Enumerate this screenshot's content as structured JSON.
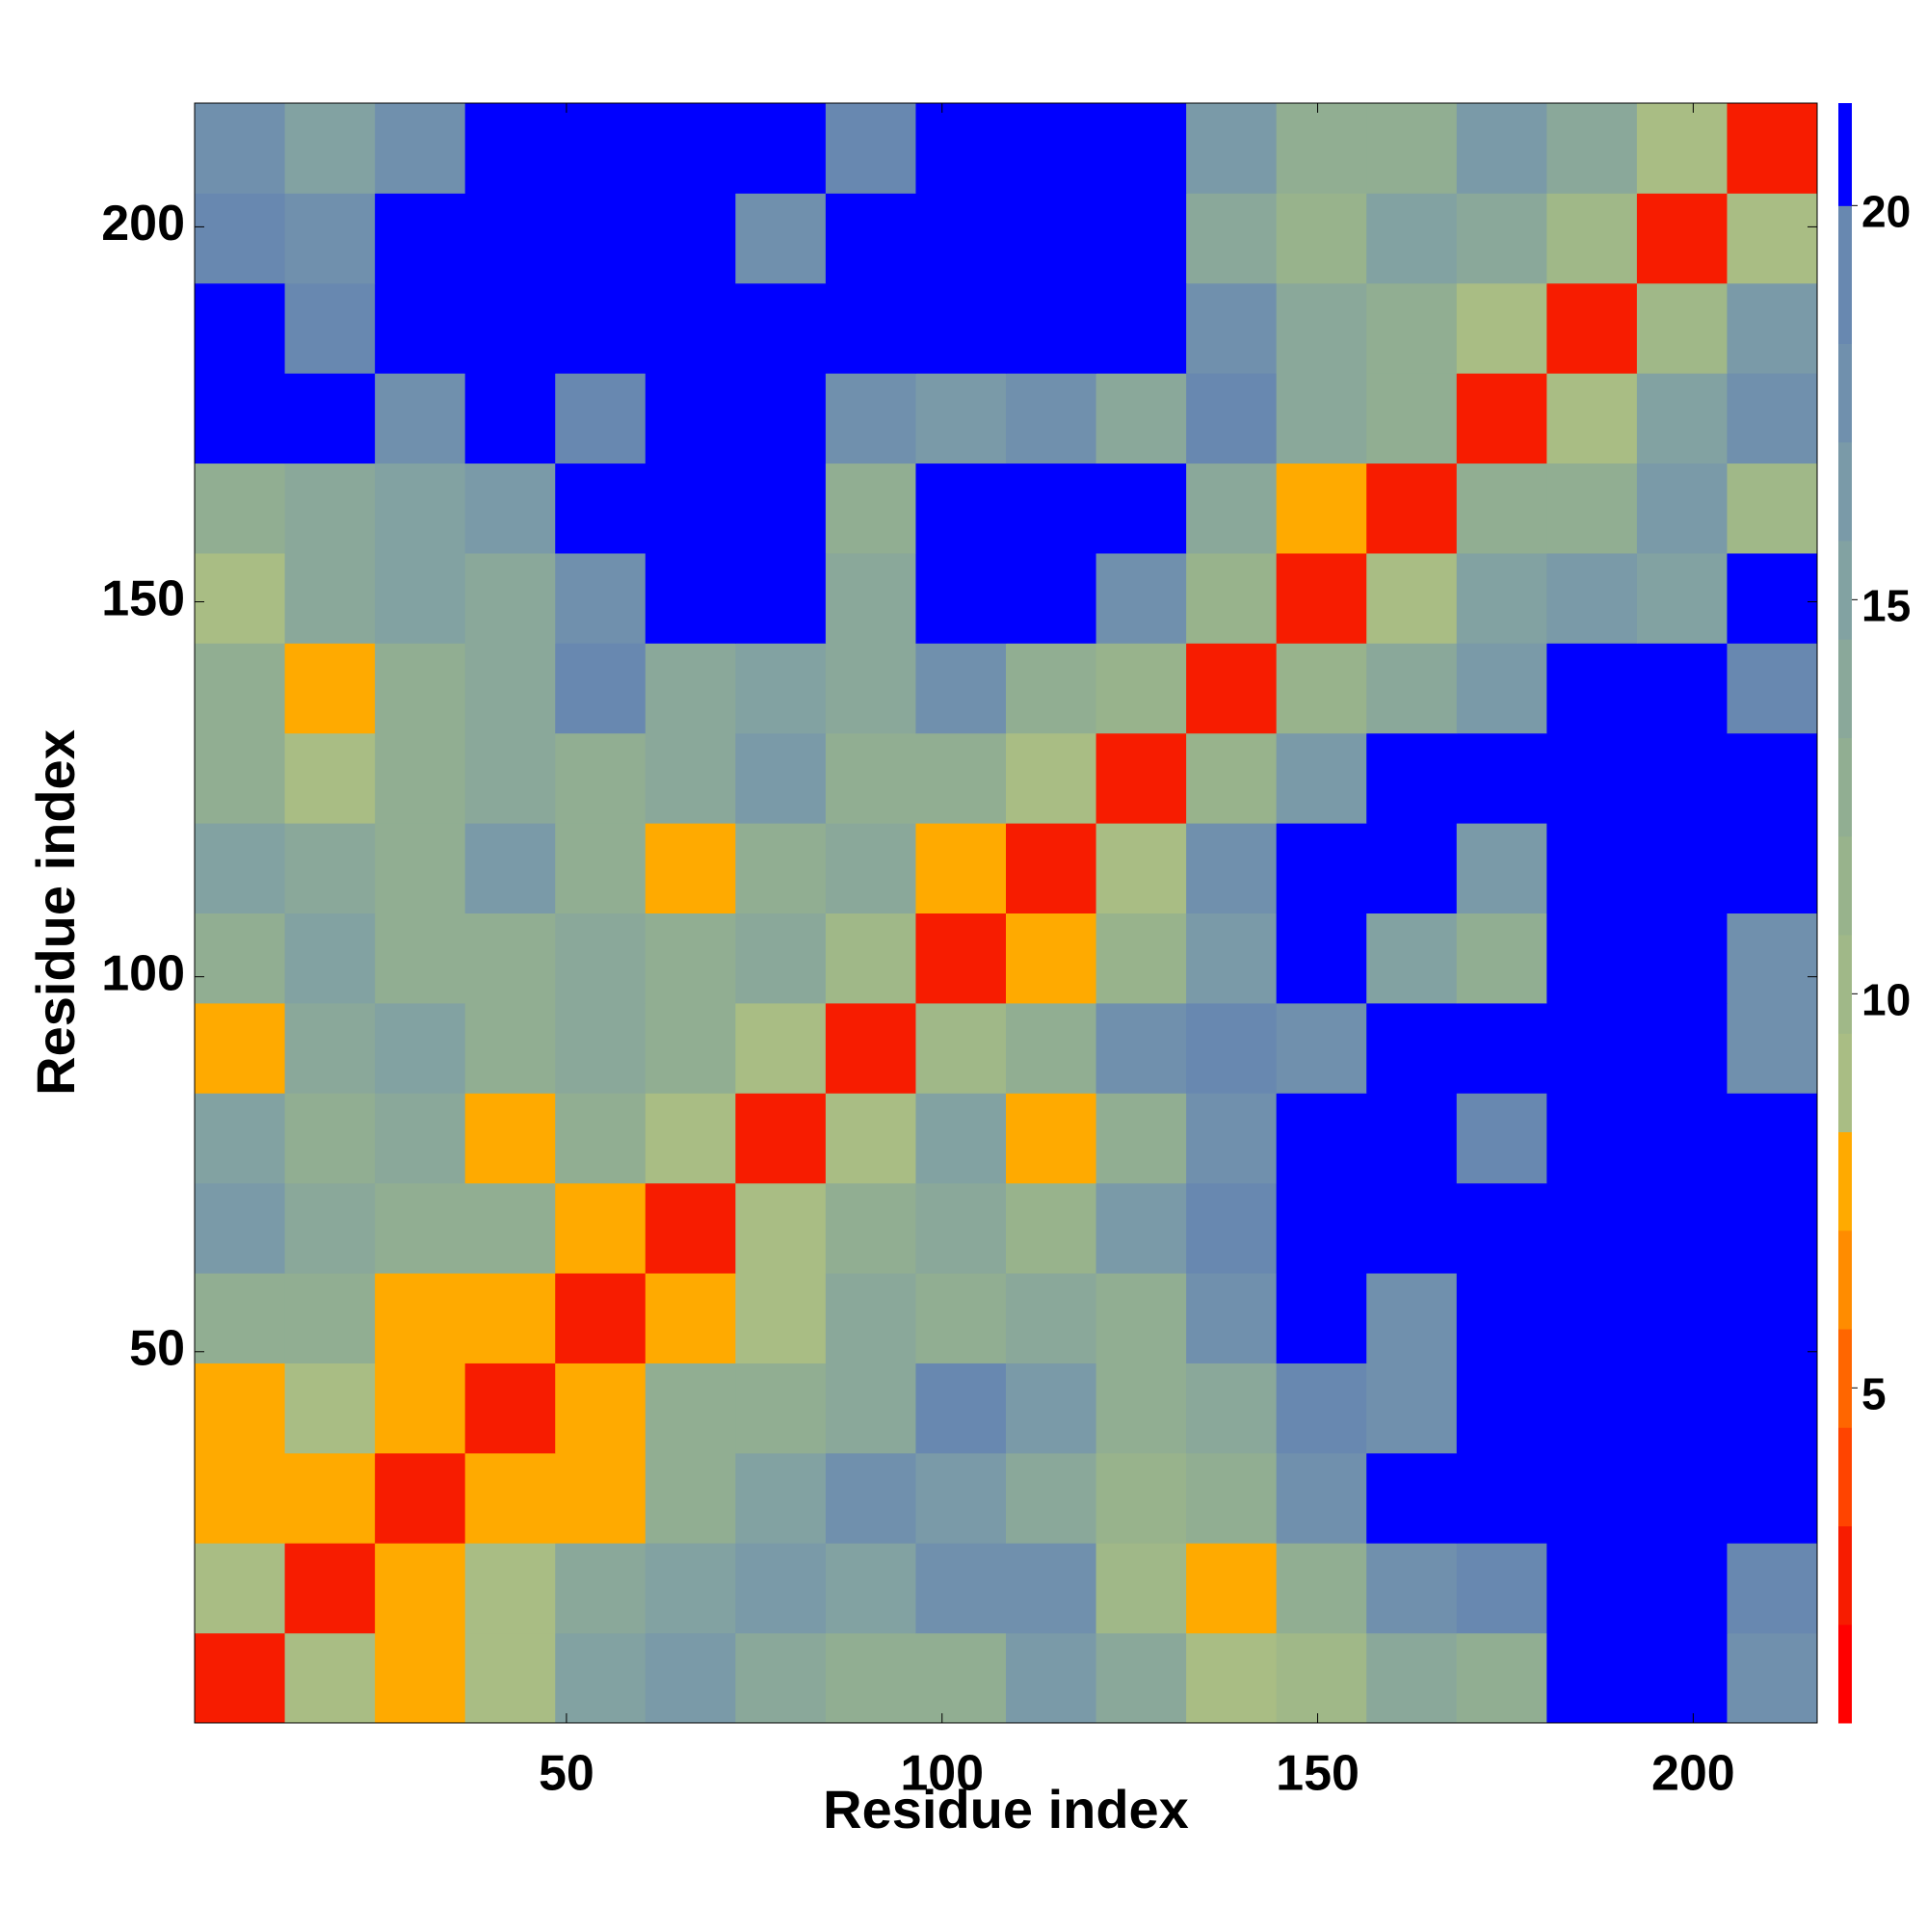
{
  "chart_data": {
    "type": "heatmap",
    "xlabel": "Residue index",
    "ylabel": "Residue index",
    "x": [
      6.5,
      18.5,
      30.5,
      42.5,
      54.5,
      66.5,
      78.5,
      90.5,
      102.5,
      114.5,
      126.5,
      138.5,
      150.5,
      162.5,
      174.5,
      186.5,
      198.5,
      210.5
    ],
    "y": [
      6.5,
      18.5,
      30.5,
      42.5,
      54.5,
      66.5,
      78.5,
      90.5,
      102.5,
      114.5,
      126.5,
      138.5,
      150.5,
      162.5,
      174.5,
      186.5,
      198.5,
      210.5
    ],
    "z": [
      [
        3,
        9,
        8,
        9,
        15,
        16,
        14,
        12,
        13,
        16,
        14,
        9,
        10,
        14,
        12,
        20,
        21,
        18
      ],
      [
        9,
        3,
        7,
        9,
        14,
        15,
        16,
        15,
        17,
        18,
        10,
        7,
        13,
        17,
        19,
        21,
        21,
        19
      ],
      [
        8,
        7,
        3,
        8,
        8,
        13,
        15,
        17,
        16,
        14,
        11,
        12,
        17,
        20,
        21,
        21,
        21,
        21
      ],
      [
        7,
        9,
        8,
        3,
        8,
        12,
        13,
        14,
        19,
        16,
        13,
        14,
        19,
        18,
        21,
        21,
        21,
        20
      ],
      [
        13,
        12,
        7,
        8,
        3,
        8,
        9,
        14,
        12,
        14,
        13,
        17,
        20,
        18,
        21,
        21,
        21,
        21
      ],
      [
        16,
        14,
        13,
        12,
        8,
        3,
        9,
        12,
        14,
        11,
        16,
        19,
        21,
        21,
        21,
        21,
        21,
        21
      ],
      [
        15,
        13,
        14,
        8,
        13,
        9,
        3,
        9,
        15,
        8,
        12,
        18,
        21,
        21,
        19,
        21,
        21,
        21
      ],
      [
        8,
        14,
        15,
        13,
        14,
        12,
        9,
        3,
        10,
        13,
        17,
        19,
        17,
        20,
        21,
        21,
        21,
        18
      ],
      [
        12,
        15,
        13,
        12,
        14,
        13,
        14,
        10,
        3,
        8,
        11,
        16,
        21,
        15,
        13,
        21,
        21,
        18
      ],
      [
        15,
        14,
        13,
        16,
        13,
        8,
        12,
        14,
        8,
        3,
        9,
        17,
        21,
        20,
        16,
        21,
        21,
        21
      ],
      [
        13,
        9,
        12,
        14,
        13,
        14,
        16,
        13,
        12,
        9,
        3,
        11,
        16,
        21,
        21,
        21,
        21,
        21
      ],
      [
        12,
        8,
        13,
        14,
        19,
        14,
        15,
        14,
        17,
        13,
        11,
        3,
        11,
        14,
        16,
        21,
        21,
        19
      ],
      [
        9,
        14,
        15,
        14,
        17,
        21,
        21,
        14,
        21,
        21,
        17,
        11,
        3,
        9,
        15,
        16,
        15,
        21
      ],
      [
        13,
        14,
        15,
        16,
        20,
        21,
        21,
        13,
        21,
        21,
        20,
        14,
        8,
        3,
        12,
        13,
        16,
        10
      ],
      [
        21,
        20,
        18,
        21,
        19,
        21,
        20,
        17,
        16,
        17,
        14,
        19,
        14,
        12,
        3,
        9,
        15,
        17
      ],
      [
        21,
        19,
        21,
        21,
        21,
        21,
        21,
        21,
        21,
        21,
        21,
        17,
        14,
        13,
        9,
        3,
        10,
        16
      ],
      [
        19,
        18,
        21,
        21,
        21,
        21,
        18,
        21,
        21,
        21,
        21,
        14,
        11,
        15,
        14,
        10,
        3,
        9
      ],
      [
        17,
        15,
        18,
        21,
        21,
        21,
        21,
        19,
        21,
        21,
        21,
        16,
        13,
        12,
        16,
        14,
        9,
        3
      ]
    ],
    "xlim": [
      0.5,
      216.5
    ],
    "ylim": [
      0.5,
      216.5
    ],
    "xticks": [
      50,
      100,
      150,
      200
    ],
    "yticks": [
      50,
      100,
      150,
      200
    ],
    "colorbar": {
      "levels": [
        0.75,
        2,
        3.25,
        4.5,
        5.75,
        7,
        8.25,
        9.5,
        10.75,
        12,
        13.25,
        14.5,
        15.75,
        17,
        18.25,
        20,
        21.3
      ],
      "colors": [
        "#ff0000",
        "#f71c00",
        "#ff4400",
        "#ff6600",
        "#ff8c00",
        "#ffaa00",
        "#a9bd84",
        "#a0b888",
        "#98b38c",
        "#91ae92",
        "#8aa89a",
        "#82a2a2",
        "#7a9aa8",
        "#7090ad",
        "#6888b0",
        "#0000ff"
      ],
      "lim": [
        0.75,
        21.3
      ],
      "ticks": [
        5,
        10,
        15,
        20
      ]
    }
  }
}
